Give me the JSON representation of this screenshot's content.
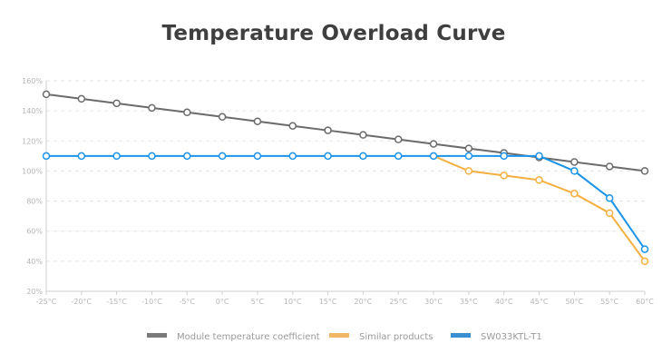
{
  "chart_data": {
    "type": "line",
    "title": "Temperature Overload Curve",
    "xlabel": "",
    "ylabel": "",
    "categories": [
      "-25°C",
      "-20°C",
      "-15°C",
      "-10°C",
      "-5°C",
      "0°C",
      "5°C",
      "10°C",
      "15°C",
      "20°C",
      "25°C",
      "30°C",
      "35°C",
      "40°C",
      "45°C",
      "50°C",
      "55°C",
      "60°C"
    ],
    "yticks": [
      "20%",
      "40%",
      "60%",
      "80%",
      "100%",
      "120%",
      "140%",
      "160%"
    ],
    "ylim": [
      20,
      160
    ],
    "grid": true,
    "legend_position": "bottom",
    "series": [
      {
        "name": "Module temperature coefficient",
        "color": "#6b6b6b",
        "values": [
          151,
          148,
          145,
          142,
          139,
          136,
          133,
          130,
          127,
          124,
          121,
          118,
          115,
          112,
          109,
          106,
          103,
          100
        ]
      },
      {
        "name": "Similar products",
        "color": "#f5b041",
        "values": [
          null,
          null,
          null,
          null,
          null,
          null,
          null,
          null,
          null,
          null,
          null,
          110,
          100,
          97,
          94,
          85,
          72,
          40
        ]
      },
      {
        "name": "SW033KTL-T1",
        "color": "#1a93e8",
        "values": [
          110,
          110,
          110,
          110,
          110,
          110,
          110,
          110,
          110,
          110,
          110,
          110,
          110,
          110,
          110,
          100,
          82,
          48
        ]
      }
    ],
    "legend_swatch_colors": [
      "#7a7a7a",
      "#f0b765",
      "#3b8fd0"
    ]
  }
}
